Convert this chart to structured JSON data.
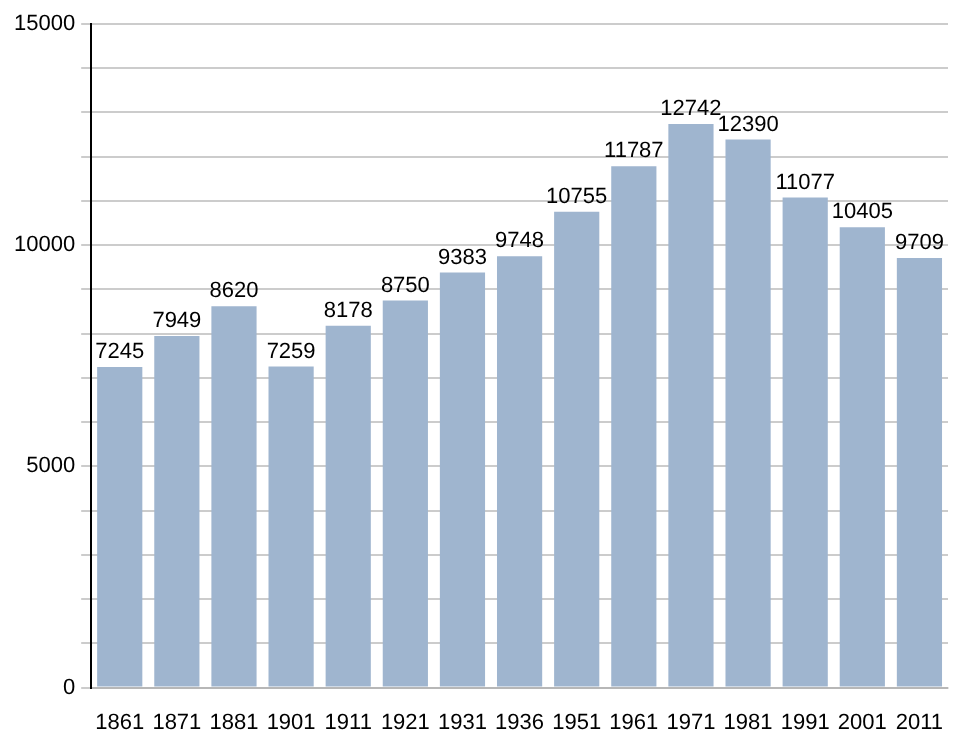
{
  "chart_data": {
    "type": "bar",
    "categories": [
      "1861",
      "1871",
      "1881",
      "1901",
      "1911",
      "1921",
      "1931",
      "1936",
      "1951",
      "1961",
      "1971",
      "1981",
      "1991",
      "2001",
      "2011"
    ],
    "values": [
      7245,
      7949,
      8620,
      7259,
      8178,
      8750,
      9383,
      9748,
      10755,
      11787,
      12742,
      12390,
      11077,
      10405,
      9709
    ],
    "color": "#9fb5cf",
    "ylim": [
      0,
      15000
    ],
    "yticks": [
      0,
      {
        "value": 1000,
        "label": null
      },
      {
        "value": 2000,
        "label": null
      },
      {
        "value": 3000,
        "label": null
      },
      {
        "value": 4000,
        "label": null
      },
      5000,
      {
        "value": 6000,
        "label": null
      },
      {
        "value": 7000,
        "label": null
      },
      {
        "value": 8000,
        "label": null
      },
      {
        "value": 9000,
        "label": null
      },
      10000,
      {
        "value": 11000,
        "label": null
      },
      {
        "value": 12000,
        "label": null
      },
      {
        "value": 13000,
        "label": null
      },
      {
        "value": 14000,
        "label": null
      },
      15000
    ],
    "grid": "y",
    "data_labels": true
  }
}
